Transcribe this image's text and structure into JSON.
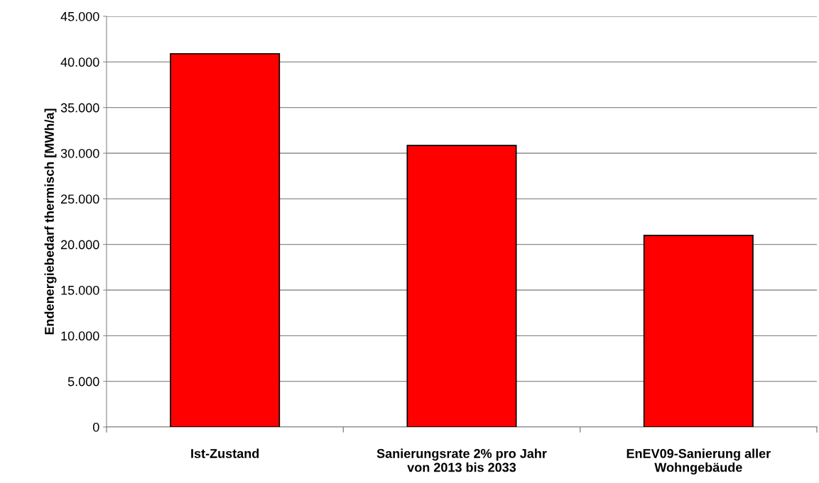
{
  "chart_data": {
    "type": "bar",
    "ylabel": "Endenergiebedarf thermisch [MWh/a]",
    "categories": [
      "Ist-Zustand",
      "Sanierungsrate 2% pro Jahr\nvon 2013 bis 2033",
      "EnEV09-Sanierung aller\nWohngebäude"
    ],
    "values": [
      40900,
      30850,
      21000
    ],
    "color": "#ff0000",
    "ylim": [
      0,
      45000
    ],
    "yticks": [
      {
        "value": 0,
        "label": "0"
      },
      {
        "value": 5000,
        "label": "5.000"
      },
      {
        "value": 10000,
        "label": "10.000"
      },
      {
        "value": 15000,
        "label": "15.000"
      },
      {
        "value": 20000,
        "label": "20.000"
      },
      {
        "value": 25000,
        "label": "25.000"
      },
      {
        "value": 30000,
        "label": "30.000"
      },
      {
        "value": 35000,
        "label": "35.000"
      },
      {
        "value": 40000,
        "label": "40.000"
      },
      {
        "value": 45000,
        "label": "45.000"
      }
    ],
    "grid": "y",
    "legend": false
  }
}
